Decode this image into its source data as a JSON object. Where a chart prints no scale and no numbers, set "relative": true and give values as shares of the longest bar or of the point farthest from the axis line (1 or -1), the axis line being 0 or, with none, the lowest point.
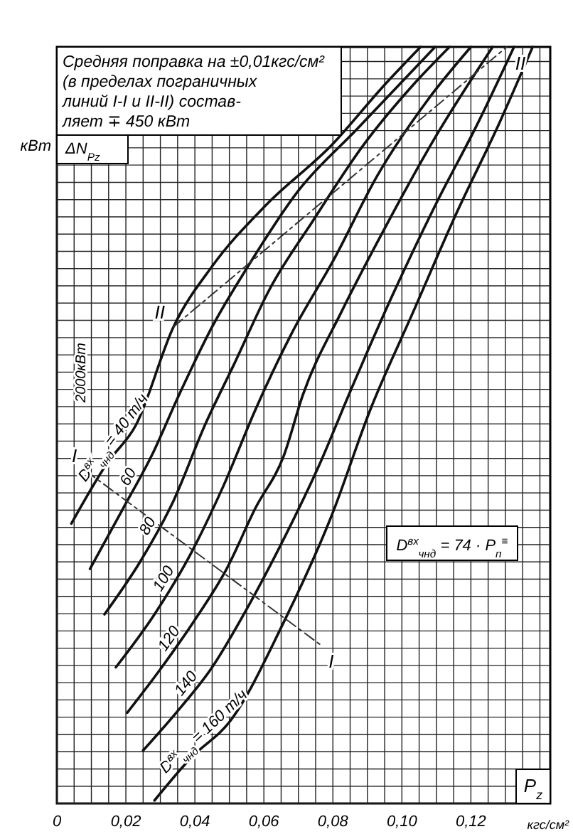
{
  "chart_data": {
    "type": "line",
    "relative": true,
    "grid": true,
    "legend": false,
    "xlabel": "P$_{z}$",
    "ylabel": "ΔN$_{Pz}$",
    "xlim": [
      0,
      0.143
    ],
    "xticks": [
      0,
      {
        "value": 0.005,
        "label": null
      },
      {
        "value": 0.01,
        "label": null
      },
      {
        "value": 0.015,
        "label": null
      },
      {
        "value": 0.02,
        "label": "0,02"
      },
      {
        "value": 0.025,
        "label": null
      },
      {
        "value": 0.03,
        "label": null
      },
      {
        "value": 0.035,
        "label": null
      },
      {
        "value": 0.04,
        "label": "0,04"
      },
      {
        "value": 0.045,
        "label": null
      },
      {
        "value": 0.05,
        "label": null
      },
      {
        "value": 0.055,
        "label": null
      },
      {
        "value": 0.06,
        "label": "0,06"
      },
      {
        "value": 0.065,
        "label": null
      },
      {
        "value": 0.07,
        "label": null
      },
      {
        "value": 0.075,
        "label": null
      },
      {
        "value": 0.08,
        "label": "0,08"
      },
      {
        "value": 0.085,
        "label": null
      },
      {
        "value": 0.09,
        "label": null
      },
      {
        "value": 0.095,
        "label": null
      },
      {
        "value": 0.1,
        "label": "0,10"
      },
      {
        "value": 0.105,
        "label": null
      },
      {
        "value": 0.11,
        "label": null
      },
      {
        "value": 0.115,
        "label": null
      },
      {
        "value": 0.12,
        "label": "0,12"
      },
      {
        "value": 0.125,
        "label": null
      },
      {
        "value": 0.13,
        "label": null
      },
      {
        "value": 0.135,
        "label": null
      },
      {
        "value": 0.14,
        "label": null
      }
    ],
    "annotations": [
      "Средняя поправка на ±0,01кгс/см²",
      "(в пределах пограничных",
      "линий I-I и II-II) состав-",
      "ляет ∓ 450 кВт",
      "кВт",
      "кгс/см²",
      "2000кВт",
      "D$^{вх}$$_{чнд}$ = 74 · P$_{п}$$^{≡}$"
    ],
    "series": [
      {
        "name": "D$^{вх}$$_{чнд}$ = 40 т/ч",
        "color": "#111111",
        "x": [
          0.0042,
          0.0146,
          0.0229,
          0.0338,
          0.045,
          0.0604,
          0.0796,
          0.095,
          0.1054
        ],
        "values": [
          0.37,
          0.45,
          0.5,
          0.63,
          0.71,
          0.79,
          0.87,
          0.95,
          1
        ]
      },
      {
        "name": "60",
        "color": "#111111",
        "x": [
          0.0096,
          0.0192,
          0.0275,
          0.0354,
          0.045,
          0.0554,
          0.07,
          0.0867,
          0.1013,
          0.1096
        ],
        "values": [
          0.31,
          0.39,
          0.46,
          0.54,
          0.63,
          0.71,
          0.81,
          0.89,
          0.96,
          1
        ]
      },
      {
        "name": "80",
        "color": "#111111",
        "x": [
          0.0138,
          0.0242,
          0.0338,
          0.0429,
          0.0513,
          0.0617,
          0.0742,
          0.0888,
          0.1033,
          0.1138
        ],
        "values": [
          0.25,
          0.32,
          0.4,
          0.5,
          0.58,
          0.68,
          0.77,
          0.87,
          0.95,
          1
        ]
      },
      {
        "name": "100",
        "color": "#111111",
        "x": [
          0.0171,
          0.0283,
          0.0388,
          0.0483,
          0.0575,
          0.0679,
          0.0804,
          0.0929,
          0.1075,
          0.12
        ],
        "values": [
          0.18,
          0.25,
          0.33,
          0.42,
          0.52,
          0.62,
          0.72,
          0.83,
          0.93,
          1
        ]
      },
      {
        "name": "120",
        "color": "#111111",
        "x": [
          0.0204,
          0.0304,
          0.0396,
          0.0492,
          0.0575,
          0.0658,
          0.0713,
          0.0825,
          0.095,
          0.1096,
          0.1263
        ],
        "values": [
          0.12,
          0.18,
          0.24,
          0.31,
          0.39,
          0.46,
          0.54,
          0.65,
          0.76,
          0.88,
          1
        ]
      },
      {
        "name": "140",
        "color": "#111111",
        "x": [
          0.025,
          0.0346,
          0.045,
          0.0554,
          0.0658,
          0.0763,
          0.0846,
          0.0971,
          0.1096,
          0.1221,
          0.1325
        ],
        "values": [
          0.07,
          0.12,
          0.18,
          0.26,
          0.35,
          0.45,
          0.54,
          0.67,
          0.79,
          0.9,
          1
        ]
      },
      {
        "name": "D$^{вх}$$_{чнд}$ = 160 т/ч",
        "color": "#111111",
        "x": [
          0.0283,
          0.0388,
          0.0504,
          0.0658,
          0.0796,
          0.0908,
          0.1033,
          0.1158,
          0.1283,
          0.1379
        ],
        "values": [
          0.004,
          0.06,
          0.11,
          0.24,
          0.38,
          0.52,
          0.65,
          0.78,
          0.9,
          1
        ]
      },
      {
        "name": "I",
        "color": "#333333",
        "line_style": "dashed",
        "x": [
          0.0083,
          0.0763
        ],
        "values": [
          0.44,
          0.21
        ]
      },
      {
        "name": "II",
        "color": "#333333",
        "line_style": "dashed",
        "x": [
          0.0338,
          0.1304
        ],
        "values": [
          0.63,
          1
        ]
      }
    ]
  }
}
